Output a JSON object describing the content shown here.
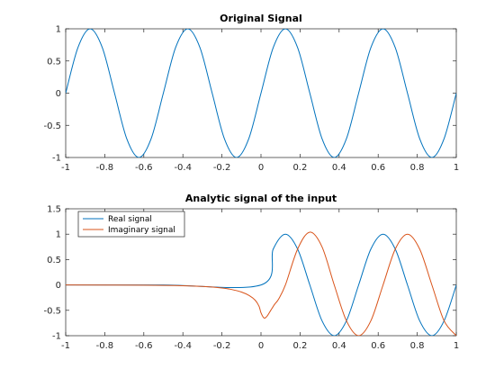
{
  "chart_data": [
    {
      "type": "line",
      "title": "Original Signal",
      "xlabel": "",
      "ylabel": "",
      "xlim": [
        -1,
        1
      ],
      "ylim": [
        -1,
        1
      ],
      "x_ticks": [
        -1,
        -0.8,
        -0.6,
        -0.4,
        -0.2,
        0,
        0.2,
        0.4,
        0.6,
        0.8,
        1
      ],
      "x_tick_labels": [
        "-1",
        "-0.8",
        "-0.6",
        "-0.4",
        "-0.2",
        "0",
        "0.2",
        "0.4",
        "0.6",
        "0.8",
        "1"
      ],
      "y_ticks": [
        -1,
        -0.5,
        0,
        0.5,
        1
      ],
      "y_tick_labels": [
        "-1",
        "-0.5",
        "0",
        "0.5",
        "1"
      ],
      "grid": false,
      "legend": null,
      "series": [
        {
          "color": "#0072BD",
          "x": [
            -1,
            -0.9375,
            -0.875,
            -0.8125,
            -0.75,
            -0.6875,
            -0.625,
            -0.5625,
            -0.5,
            -0.4375,
            -0.375,
            -0.3125,
            -0.25,
            -0.1875,
            -0.125,
            -0.0625,
            0,
            0.0625,
            0.125,
            0.1875,
            0.25,
            0.3125,
            0.375,
            0.4375,
            0.5,
            0.5625,
            0.625,
            0.6875,
            0.75,
            0.8125,
            0.875,
            0.9375,
            1
          ],
          "y": [
            0,
            0.707,
            1,
            0.707,
            0,
            -0.707,
            -1,
            -0.707,
            0,
            0.707,
            1,
            0.707,
            0,
            -0.707,
            -1,
            -0.707,
            0,
            0.707,
            1,
            0.707,
            0,
            -0.707,
            -1,
            -0.707,
            0,
            0.707,
            1,
            0.707,
            0,
            -0.707,
            -1,
            -0.707,
            0
          ]
        }
      ]
    },
    {
      "type": "line",
      "title": "Analytic signal of the input",
      "xlabel": "",
      "ylabel": "",
      "xlim": [
        -1,
        1
      ],
      "ylim": [
        -1,
        1.5
      ],
      "x_ticks": [
        -1,
        -0.8,
        -0.6,
        -0.4,
        -0.2,
        0,
        0.2,
        0.4,
        0.6,
        0.8,
        1
      ],
      "x_tick_labels": [
        "-1",
        "-0.8",
        "-0.6",
        "-0.4",
        "-0.2",
        "0",
        "0.2",
        "0.4",
        "0.6",
        "0.8",
        "1"
      ],
      "y_ticks": [
        -1,
        -0.5,
        0,
        0.5,
        1,
        1.5
      ],
      "y_tick_labels": [
        "-1",
        "-0.5",
        "0",
        "0.5",
        "1",
        "1.5"
      ],
      "grid": false,
      "legend": "top-left",
      "series": [
        {
          "name": "Real signal",
          "color": "#0072BD",
          "x": [
            -1,
            -0.5,
            0,
            0.0625,
            0.125,
            0.1875,
            0.25,
            0.3125,
            0.375,
            0.4375,
            0.5,
            0.5625,
            0.625,
            0.6875,
            0.75,
            0.8125,
            0.875,
            0.9375,
            1
          ],
          "y": [
            0,
            0,
            0,
            0.707,
            1,
            0.707,
            0,
            -0.707,
            -1,
            -0.707,
            0,
            0.707,
            1,
            0.707,
            0,
            -0.707,
            -1,
            -0.707,
            0
          ]
        },
        {
          "name": "Imaginary signal",
          "color": "#D95319",
          "x": [
            -1,
            -0.6,
            -0.4,
            -0.3,
            -0.2,
            -0.15,
            -0.1,
            -0.06,
            -0.03,
            -0.01,
            0,
            0.015,
            0.03,
            0.05,
            0.07,
            0.09,
            0.125,
            0.1875,
            0.25,
            0.3125,
            0.375,
            0.4375,
            0.5,
            0.5625,
            0.625,
            0.6875,
            0.75,
            0.8125,
            0.875,
            0.9375,
            1
          ],
          "y": [
            0,
            -0.005,
            -0.015,
            -0.03,
            -0.06,
            -0.09,
            -0.14,
            -0.21,
            -0.3,
            -0.42,
            -0.55,
            -0.65,
            -0.62,
            -0.5,
            -0.38,
            -0.28,
            0,
            0.707,
            1.04,
            0.75,
            0,
            -0.707,
            -1,
            -0.707,
            0,
            0.707,
            1,
            0.707,
            0,
            -0.707,
            -1
          ]
        }
      ]
    }
  ]
}
